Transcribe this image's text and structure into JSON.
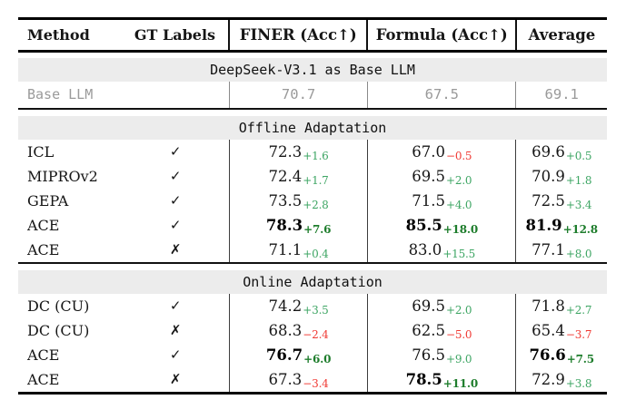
{
  "columns": [
    "Method",
    "GT Labels",
    "FINER (Acc↑)",
    "Formula (Acc↑)",
    "Average"
  ],
  "colors": {
    "positive_delta": "#3da563",
    "positive_delta_bold": "#1e7d2c",
    "negative_delta": "#f03a34",
    "banner_background": "#ececec",
    "muted_text": "#9a9a9a"
  },
  "sections": [
    {
      "banner": "DeepSeek-V3.1 as Base LLM",
      "rows": [
        {
          "method": "Base LLM",
          "gt": "",
          "style": "muted",
          "cells": [
            {
              "main": "70.7"
            },
            {
              "main": "67.5"
            },
            {
              "main": "69.1"
            }
          ]
        }
      ]
    },
    {
      "banner": "Offline Adaptation",
      "rows": [
        {
          "method": "ICL",
          "gt": "✓",
          "cells": [
            {
              "main": "72.3",
              "delta": "+1.6",
              "sign": "pos"
            },
            {
              "main": "67.0",
              "delta": "−0.5",
              "sign": "neg"
            },
            {
              "main": "69.6",
              "delta": "+0.5",
              "sign": "pos"
            }
          ]
        },
        {
          "method": "MIPROv2",
          "gt": "✓",
          "cells": [
            {
              "main": "72.4",
              "delta": "+1.7",
              "sign": "pos"
            },
            {
              "main": "69.5",
              "delta": "+2.0",
              "sign": "pos"
            },
            {
              "main": "70.9",
              "delta": "+1.8",
              "sign": "pos"
            }
          ]
        },
        {
          "method": "GEPA",
          "gt": "✓",
          "cells": [
            {
              "main": "73.5",
              "delta": "+2.8",
              "sign": "pos"
            },
            {
              "main": "71.5",
              "delta": "+4.0",
              "sign": "pos"
            },
            {
              "main": "72.5",
              "delta": "+3.4",
              "sign": "pos"
            }
          ]
        },
        {
          "method": "ACE",
          "gt": "✓",
          "cells": [
            {
              "main": "78.3",
              "delta": "+7.6",
              "sign": "pos",
              "bold": true
            },
            {
              "main": "85.5",
              "delta": "+18.0",
              "sign": "pos",
              "bold": true
            },
            {
              "main": "81.9",
              "delta": "+12.8",
              "sign": "pos",
              "bold": true
            }
          ]
        },
        {
          "method": "ACE",
          "gt": "✗",
          "cells": [
            {
              "main": "71.1",
              "delta": "+0.4",
              "sign": "pos"
            },
            {
              "main": "83.0",
              "delta": "+15.5",
              "sign": "pos"
            },
            {
              "main": "77.1",
              "delta": "+8.0",
              "sign": "pos"
            }
          ]
        }
      ]
    },
    {
      "banner": "Online Adaptation",
      "rows": [
        {
          "method": "DC (CU)",
          "gt": "✓",
          "cells": [
            {
              "main": "74.2",
              "delta": "+3.5",
              "sign": "pos"
            },
            {
              "main": "69.5",
              "delta": "+2.0",
              "sign": "pos"
            },
            {
              "main": "71.8",
              "delta": "+2.7",
              "sign": "pos"
            }
          ]
        },
        {
          "method": "DC (CU)",
          "gt": "✗",
          "cells": [
            {
              "main": "68.3",
              "delta": "−2.4",
              "sign": "neg"
            },
            {
              "main": "62.5",
              "delta": "−5.0",
              "sign": "neg"
            },
            {
              "main": "65.4",
              "delta": "−3.7",
              "sign": "neg"
            }
          ]
        },
        {
          "method": "ACE",
          "gt": "✓",
          "cells": [
            {
              "main": "76.7",
              "delta": "+6.0",
              "sign": "pos",
              "bold": true
            },
            {
              "main": "76.5",
              "delta": "+9.0",
              "sign": "pos"
            },
            {
              "main": "76.6",
              "delta": "+7.5",
              "sign": "pos",
              "bold": true
            }
          ]
        },
        {
          "method": "ACE",
          "gt": "✗",
          "cells": [
            {
              "main": "67.3",
              "delta": "−3.4",
              "sign": "neg"
            },
            {
              "main": "78.5",
              "delta": "+11.0",
              "sign": "pos",
              "bold": true
            },
            {
              "main": "72.9",
              "delta": "+3.8",
              "sign": "pos"
            }
          ]
        }
      ]
    }
  ]
}
